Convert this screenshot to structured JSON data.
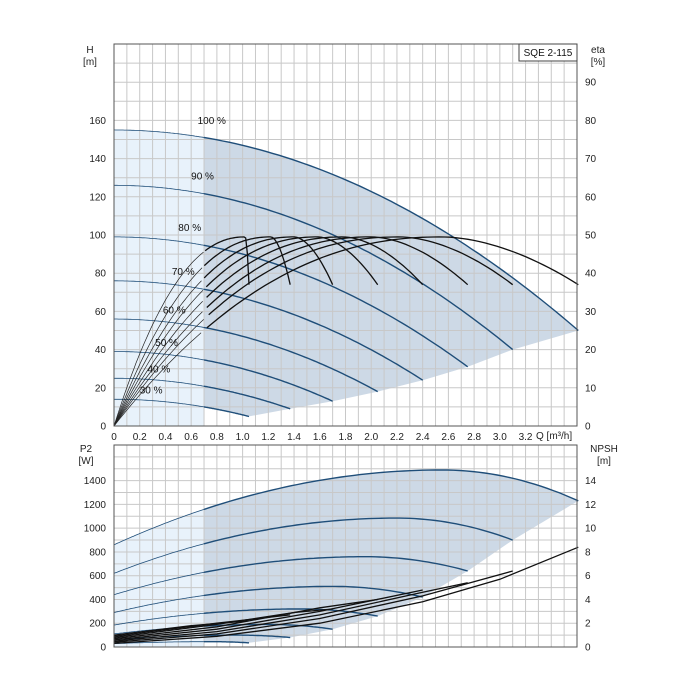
{
  "model_label": "SQE 2-115",
  "chart_data": [
    {
      "type": "line",
      "name": "head",
      "xlabel": "Q [m³/h]",
      "ylabel": "H [m]",
      "ylabel_line1": "H",
      "ylabel_line2": "[m]",
      "y2label_line1": "eta",
      "y2label_line2": "[%]",
      "xlim": [
        0,
        3.6
      ],
      "ylim": [
        0,
        200
      ],
      "y2lim": [
        0,
        100
      ],
      "x_ticks": [
        "0",
        "0.2",
        "0.4",
        "0.6",
        "0.8",
        "1.0",
        "1.2",
        "1.4",
        "1.6",
        "1.8",
        "2.0",
        "2.2",
        "2.4",
        "2.6",
        "2.8",
        "3.0",
        "3.2"
      ],
      "x_tick_values": [
        0,
        0.2,
        0.4,
        0.6,
        0.8,
        1.0,
        1.2,
        1.4,
        1.6,
        1.8,
        2.0,
        2.2,
        2.4,
        2.6,
        2.8,
        3.0,
        3.2
      ],
      "y_ticks": [
        "0",
        "20",
        "40",
        "60",
        "80",
        "100",
        "120",
        "140",
        "160"
      ],
      "y_tick_values": [
        0,
        20,
        40,
        60,
        80,
        100,
        120,
        140,
        160
      ],
      "y2_ticks": [
        "0",
        "10",
        "20",
        "30",
        "40",
        "50",
        "60",
        "70",
        "80",
        "90"
      ],
      "y2_tick_values": [
        0,
        10,
        20,
        30,
        40,
        50,
        60,
        70,
        80,
        90
      ],
      "speed_curves": [
        {
          "label": "100 %",
          "shutoff": 155,
          "qmax": 3.61,
          "hend": 50,
          "label_q": 0.65,
          "label_h": 158
        },
        {
          "label": "90 %",
          "shutoff": 126,
          "qmax": 3.1,
          "hend": 40,
          "label_q": 0.6,
          "label_h": 129
        },
        {
          "label": "80 %",
          "shutoff": 99,
          "qmax": 2.75,
          "hend": 31,
          "label_q": 0.5,
          "label_h": 102
        },
        {
          "label": "70 %",
          "shutoff": 76,
          "qmax": 2.4,
          "hend": 24,
          "label_q": 0.45,
          "label_h": 79
        },
        {
          "label": "60 %",
          "shutoff": 56,
          "qmax": 2.05,
          "hend": 18,
          "label_q": 0.38,
          "label_h": 59
        },
        {
          "label": "50 %",
          "shutoff": 39,
          "qmax": 1.7,
          "hend": 13,
          "label_q": 0.32,
          "label_h": 42
        },
        {
          "label": "40 %",
          "shutoff": 25,
          "qmax": 1.37,
          "hend": 9,
          "label_q": 0.26,
          "label_h": 28
        },
        {
          "label": "30 %",
          "shutoff": 14,
          "qmax": 1.05,
          "hend": 5,
          "label_q": 0.2,
          "label_h": 17
        }
      ],
      "efficiency_curves": [
        {
          "qpeak": 1.02,
          "qend": 1.05,
          "eta_end": 37
        },
        {
          "qpeak": 1.22,
          "qend": 1.37,
          "eta_end": 37
        },
        {
          "qpeak": 1.4,
          "qend": 1.7,
          "eta_end": 37
        },
        {
          "qpeak": 1.58,
          "qend": 2.05,
          "eta_end": 37
        },
        {
          "qpeak": 1.78,
          "qend": 2.4,
          "eta_end": 37
        },
        {
          "qpeak": 2.0,
          "qend": 2.75,
          "eta_end": 37
        },
        {
          "qpeak": 2.22,
          "qend": 3.1,
          "eta_end": 37
        },
        {
          "qpeak": 2.55,
          "qend": 3.61,
          "eta_end": 37
        }
      ],
      "eta_peak": 49.5,
      "min_flow_q": 0.7
    },
    {
      "type": "line",
      "name": "power-npsh",
      "xlabel": "",
      "ylabel_line1": "P2",
      "ylabel_line2": "[W]",
      "y2label_line1": "NPSH",
      "y2label_line2": "[m]",
      "xlim": [
        0,
        3.6
      ],
      "ylim": [
        0,
        1700
      ],
      "y2lim": [
        0,
        17
      ],
      "y_ticks": [
        "0",
        "200",
        "400",
        "600",
        "800",
        "1000",
        "1200",
        "1400"
      ],
      "y_tick_values": [
        0,
        200,
        400,
        600,
        800,
        1000,
        1200,
        1400
      ],
      "y2_ticks": [
        "0",
        "2",
        "4",
        "6",
        "8",
        "10",
        "12",
        "14"
      ],
      "y2_tick_values": [
        0,
        2,
        4,
        6,
        8,
        10,
        12,
        14
      ],
      "power_curves": [
        {
          "p0": 860,
          "pmax": 1490,
          "qpeak": 2.55,
          "qend": 3.61,
          "pend": 1230
        },
        {
          "p0": 620,
          "pmax": 1085,
          "qpeak": 2.2,
          "qend": 3.1,
          "pend": 900
        },
        {
          "p0": 440,
          "pmax": 760,
          "qpeak": 1.95,
          "qend": 2.75,
          "pend": 640
        },
        {
          "p0": 290,
          "pmax": 510,
          "qpeak": 1.7,
          "qend": 2.4,
          "pend": 420
        },
        {
          "p0": 185,
          "pmax": 320,
          "qpeak": 1.45,
          "qend": 2.05,
          "pend": 260
        },
        {
          "p0": 110,
          "pmax": 190,
          "qpeak": 1.2,
          "qend": 1.7,
          "pend": 150
        },
        {
          "p0": 60,
          "pmax": 100,
          "qpeak": 0.95,
          "qend": 1.37,
          "pend": 80
        },
        {
          "p0": 28,
          "pmax": 45,
          "qpeak": 0.75,
          "qend": 1.05,
          "pend": 35
        }
      ],
      "npsh_curves": [
        {
          "q": [
            0,
            0.8,
            1.6,
            2.4,
            3.0,
            3.61
          ],
          "npsh": [
            0.3,
            0.9,
            2.0,
            3.8,
            5.7,
            8.4
          ]
        },
        {
          "q": [
            0,
            0.8,
            1.6,
            2.4,
            3.1
          ],
          "npsh": [
            0.4,
            1.1,
            2.4,
            4.3,
            6.4
          ]
        },
        {
          "q": [
            0,
            0.8,
            1.6,
            2.4,
            2.75
          ],
          "npsh": [
            0.5,
            1.3,
            2.7,
            4.6,
            5.4
          ]
        },
        {
          "q": [
            0,
            0.8,
            1.6,
            2.4
          ],
          "npsh": [
            0.6,
            1.5,
            3.0,
            4.8
          ]
        },
        {
          "q": [
            0,
            0.8,
            1.6,
            2.05
          ],
          "npsh": [
            0.7,
            1.7,
            3.3,
            4.0
          ]
        },
        {
          "q": [
            0,
            0.8,
            1.4,
            1.7
          ],
          "npsh": [
            0.8,
            1.9,
            2.9,
            3.2
          ]
        },
        {
          "q": [
            0,
            0.8,
            1.37
          ],
          "npsh": [
            0.9,
            2.0,
            2.7
          ]
        },
        {
          "q": [
            0,
            0.6,
            1.05
          ],
          "npsh": [
            1.0,
            1.8,
            2.2
          ]
        }
      ],
      "min_flow_q": 0.7
    }
  ],
  "colors": {
    "region_fill": "#cdd9e6",
    "minflow_fill": "#e8f2fb",
    "curve_blue": "#1f4e79",
    "curve_black": "#111111",
    "grid": "#c8c8c8"
  }
}
